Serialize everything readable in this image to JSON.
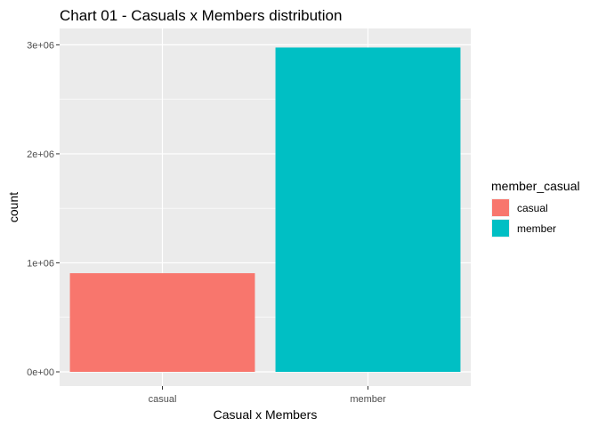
{
  "chart_data": {
    "type": "bar",
    "title": "Chart 01 - Casuals x Members distribution",
    "xlabel": "Casual x Members",
    "ylabel": "count",
    "categories": [
      "casual",
      "member"
    ],
    "values": [
      905000,
      2975000
    ],
    "colors": [
      "#F8766D",
      "#00BFC4"
    ],
    "ylim": [
      0,
      3150000
    ],
    "yticks": [
      0,
      1000000,
      2000000,
      3000000
    ],
    "ytick_labels": [
      "0e+00",
      "1e+06",
      "2e+06",
      "3e+06"
    ],
    "grid": true,
    "panel_background": "#EBEBEB",
    "legend": {
      "title": "member_casual",
      "entries": [
        "casual",
        "member"
      ],
      "position": "right"
    }
  }
}
